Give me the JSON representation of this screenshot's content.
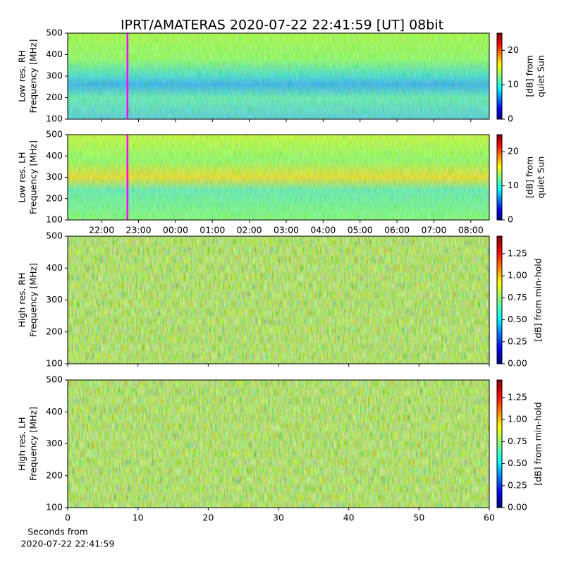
{
  "chart_data": [
    {
      "type": "heatmap",
      "title": "IPRT/AMATERAS 2020-07-22 22:41:59 [UT]   08bit",
      "ylabel": [
        "Low res. RH",
        "Frequency [MHz]"
      ],
      "ylim": [
        100,
        500
      ],
      "yticks": [
        100,
        200,
        300,
        400,
        500
      ],
      "xlim": [
        21.08,
        32.5
      ],
      "vline": 22.7,
      "vline_color": "#ff00ff",
      "colorbar_label": [
        "[dB] from",
        "quiet Sun"
      ],
      "clim": [
        0,
        25
      ],
      "cticks": [
        0,
        10,
        20
      ]
    },
    {
      "type": "heatmap",
      "ylabel": [
        "Low res. LH",
        "Frequency [MHz]"
      ],
      "ylim": [
        100,
        500
      ],
      "yticks": [
        100,
        200,
        300,
        400,
        500
      ],
      "xlim": [
        21.08,
        32.5
      ],
      "xticks": [
        {
          "value": 22,
          "label": "22:00"
        },
        {
          "value": 23,
          "label": "23:00"
        },
        {
          "value": 24,
          "label": "00:00"
        },
        {
          "value": 25,
          "label": "01:00"
        },
        {
          "value": 26,
          "label": "02:00"
        },
        {
          "value": 27,
          "label": "03:00"
        },
        {
          "value": 28,
          "label": "04:00"
        },
        {
          "value": 29,
          "label": "05:00"
        },
        {
          "value": 30,
          "label": "06:00"
        },
        {
          "value": 31,
          "label": "07:00"
        },
        {
          "value": 32,
          "label": "08:00"
        }
      ],
      "vline": 22.7,
      "vline_color": "#ff00ff",
      "colorbar_label": [
        "[dB] from",
        "quiet Sun"
      ],
      "clim": [
        0,
        25
      ],
      "cticks": [
        0,
        10,
        20
      ]
    },
    {
      "type": "heatmap",
      "ylabel": [
        "High res. RH",
        "Frequency [MHz]"
      ],
      "ylim": [
        100,
        500
      ],
      "yticks": [
        100,
        200,
        300,
        400,
        500
      ],
      "xlim": [
        0,
        60
      ],
      "colorbar_label": [
        "[dB] from min-hold"
      ],
      "clim": [
        0,
        1.45
      ],
      "cticks": [
        {
          "value": 0,
          "label": "0.00"
        },
        {
          "value": 0.25,
          "label": "0.25"
        },
        {
          "value": 0.5,
          "label": "0.50"
        },
        {
          "value": 0.75,
          "label": "0.75"
        },
        {
          "value": 1,
          "label": "1.00"
        },
        {
          "value": 1.25,
          "label": "1.25"
        }
      ]
    },
    {
      "type": "heatmap",
      "ylabel": [
        "High res. LH",
        "Frequency [MHz]"
      ],
      "ylim": [
        100,
        500
      ],
      "yticks": [
        100,
        200,
        300,
        400,
        500
      ],
      "xlim": [
        0,
        60
      ],
      "xticks": [
        0,
        10,
        20,
        30,
        40,
        50,
        60
      ],
      "xlabel": [
        "Seconds from",
        "2020-07-22 22:41:59"
      ],
      "colorbar_label": [
        "[dB] from min-hold"
      ],
      "clim": [
        0,
        1.45
      ],
      "cticks": [
        {
          "value": 0,
          "label": "0.00"
        },
        {
          "value": 0.25,
          "label": "0.25"
        },
        {
          "value": 0.5,
          "label": "0.50"
        },
        {
          "value": 0.75,
          "label": "0.75"
        },
        {
          "value": 1,
          "label": "1.00"
        },
        {
          "value": 1.25,
          "label": "1.25"
        }
      ]
    }
  ]
}
